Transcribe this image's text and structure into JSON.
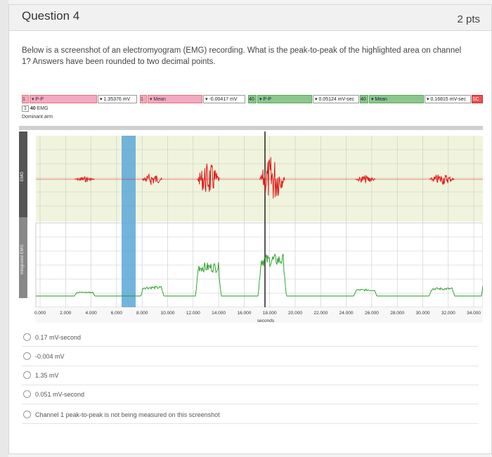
{
  "question": {
    "title": "Question 4",
    "points": "2 pts",
    "text": "Below is a screenshot of an electromyogram (EMG) recording. What is the peak-to-peak of the highlighted area on channel 1? Answers have been rounded to two decimal points."
  },
  "toolbar": {
    "ch1": "1",
    "m1": "P-P",
    "v1": "1.35376 mV",
    "ch2": "1",
    "m2": "Mean",
    "v2": "-0.00417 mV",
    "ch3": "40",
    "m3": "P-P",
    "v3": "0.05124 mV-sec",
    "ch4": "40",
    "m4": "Mean",
    "v4": "0.16815 mV-sec",
    "sc": "SC",
    "row2_ch": "1",
    "row2_num": "40",
    "row2_label": "EMG",
    "row3_label": "Dominant arm"
  },
  "channels": [
    {
      "side_label": "EMG",
      "color": "#e01b1b"
    },
    {
      "side_label": "Integrated EMG",
      "color": "#1e9a1e"
    }
  ],
  "x_axis": {
    "ticks": [
      "0.000",
      "2.000",
      "4.000",
      "6.000",
      "8.000",
      "10.000",
      "12.000",
      "14.000",
      "16.000",
      "18.000",
      "20.000",
      "22.000",
      "24.000",
      "26.000",
      "28.000",
      "30.000",
      "32.000",
      "34.000"
    ],
    "unit": "seconds"
  },
  "options": [
    "0.17 mV-second",
    "-0.004 mV",
    "1.35 mV",
    "0.051 mV-second",
    "Channel 1 peak-to-peak is not being measured on this screenshot"
  ],
  "colors": {
    "highlight": "#5aa7d8",
    "plot_bg": "#f0f4dc",
    "emg": "#e01b1b",
    "integrated": "#1e9a1e"
  }
}
